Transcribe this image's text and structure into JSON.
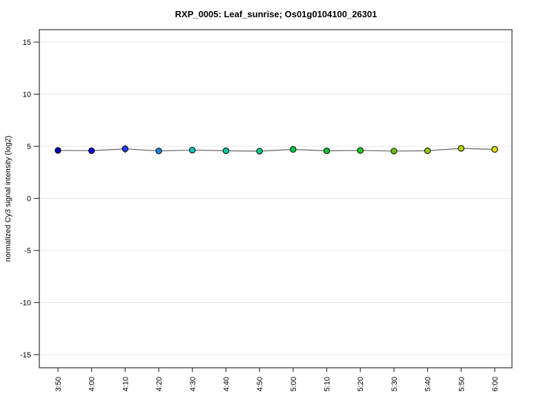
{
  "window": {
    "background_color": "#ffffff"
  },
  "chart_data": {
    "type": "line",
    "title": "RXP_0005: Leaf_sunrise; Os01g0104100_26301",
    "xlabel": "",
    "ylabel": "normalized Cy3 signal intensity (log2)",
    "categories": [
      "3:50",
      "4:00",
      "4:10",
      "4:20",
      "4:30",
      "4:40",
      "4:50",
      "5:00",
      "5:10",
      "5:20",
      "5:30",
      "5:40",
      "5:50",
      "6:00"
    ],
    "values": [
      4.6,
      4.58,
      4.75,
      4.55,
      4.63,
      4.57,
      4.53,
      4.7,
      4.56,
      4.6,
      4.54,
      4.57,
      4.8,
      4.7
    ],
    "errors": [
      0.15,
      0.12,
      0.4,
      0.3,
      0.15,
      0.12,
      0.12,
      0.32,
      0.15,
      0.12,
      0.25,
      0.28,
      0.2,
      0.15
    ],
    "point_colors": [
      "#0000B4",
      "#0000E1",
      "#1E3CEB",
      "#1E82DC",
      "#00C3C3",
      "#00C89B",
      "#00C878",
      "#00C850",
      "#05C832",
      "#1EC81E",
      "#64C800",
      "#8CC800",
      "#B4D200",
      "#DCDC00"
    ],
    "ylim": [
      -16.5,
      16.5
    ],
    "yticks": [
      -15,
      -10,
      -5,
      0,
      5,
      10,
      15
    ],
    "grid": "horizontal",
    "legend": "none",
    "colors": {
      "line": "#606060",
      "grid": "#E4E4E4",
      "box": "#3A3A3A",
      "tick": "#333333",
      "marker_stroke": "#111111",
      "error_bar": "#222222",
      "text": "#000000"
    }
  }
}
